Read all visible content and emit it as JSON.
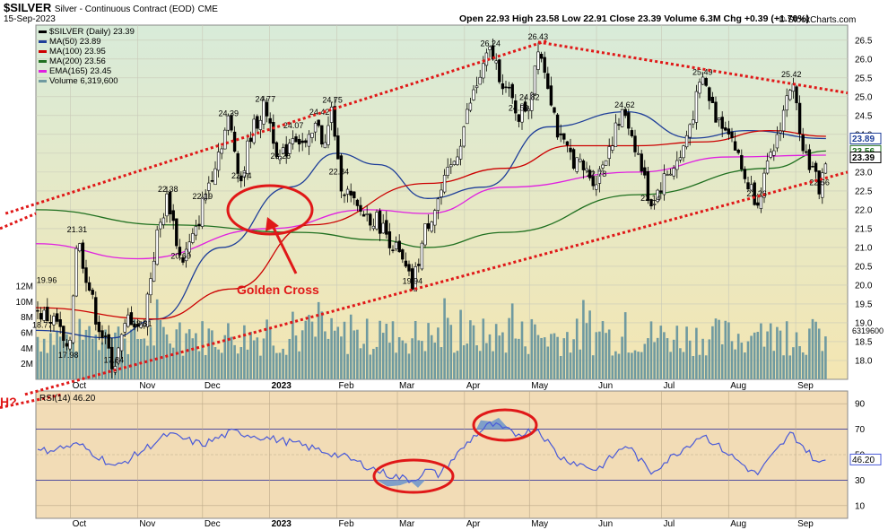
{
  "header": {
    "symbol": "$SILVER",
    "name": "Silver - Continuous Contract (EOD)",
    "exchange": "CME",
    "date": "15-Sep-2023",
    "quote": "Open 22.93  High 23.58  Low 22.91  Close 23.39  Volume 6.3M  Chg +0.39 (+1.70%)",
    "watermark": "© StockCharts.com"
  },
  "legend": [
    {
      "label": "$SILVER (Daily) 23.39",
      "color": "#000000",
      "icon": "candle-icon"
    },
    {
      "label": "MA(50) 23.89",
      "color": "#1f3f99",
      "icon": "line-icon"
    },
    {
      "label": "MA(100) 23.95",
      "color": "#cc0000",
      "icon": "line-icon"
    },
    {
      "label": "MA(200) 23.56",
      "color": "#207020",
      "icon": "line-icon"
    },
    {
      "label": "EMA(165) 23.45",
      "color": "#e020e0",
      "icon": "line-icon"
    },
    {
      "label": "Volume 6,319,600",
      "color": "#6f9aa0",
      "icon": "bars-icon"
    }
  ],
  "rsi_label": "RSI(14) 46.20",
  "annotations": {
    "golden_cross": "Golden Cross",
    "question": "H?"
  },
  "colors": {
    "price_bg_top": "#d8ebd9",
    "price_bg_bottom": "#f4e6b2",
    "rsi_bg": "#f2dcb6",
    "annotation": "#e01818",
    "volume": "#6f9aa0",
    "rsi_line": "#4a5ad8",
    "rsi_fill": "#7f9fc8"
  },
  "chart_data": {
    "type": "candlestick",
    "months": [
      "Oct",
      "Nov",
      "Dec",
      "2023",
      "Feb",
      "Mar",
      "Apr",
      "May",
      "Jun",
      "Jul",
      "Aug",
      "Sep"
    ],
    "price_axis": {
      "ticks": [
        "18.0",
        "18.5",
        "19.0",
        "19.5",
        "20.0",
        "20.5",
        "21.0",
        "21.5",
        "22.0",
        "22.5",
        "23.0",
        "23.5",
        "24.0",
        "24.5",
        "25.0",
        "25.5",
        "26.0",
        "26.5"
      ],
      "min": 17.5,
      "max": 26.9
    },
    "volume_axis": {
      "ticks": [
        "2M",
        "4M",
        "6M",
        "8M",
        "10M",
        "12M"
      ],
      "max": 15
    },
    "rsi_axis": {
      "ticks": [
        "10",
        "30",
        "50",
        "70",
        "90"
      ],
      "min": 0,
      "max": 100
    },
    "close_path": [
      {
        "date": "2022-09-15",
        "close": 19.3
      },
      {
        "date": "2022-09-25",
        "close": 19.0
      },
      {
        "date": "2022-09-30",
        "close": 17.98
      },
      {
        "date": "2022-10-04",
        "close": 21.31
      },
      {
        "date": "2022-10-13",
        "close": 19.1
      },
      {
        "date": "2022-10-21",
        "close": 17.84
      },
      {
        "date": "2022-10-28",
        "close": 19.2
      },
      {
        "date": "2022-11-03",
        "close": 18.81
      },
      {
        "date": "2022-11-10",
        "close": 21.3
      },
      {
        "date": "2022-11-15",
        "close": 22.38
      },
      {
        "date": "2022-11-21",
        "close": 20.6
      },
      {
        "date": "2022-11-28",
        "close": 21.4
      },
      {
        "date": "2022-12-01",
        "close": 22.19
      },
      {
        "date": "2022-12-07",
        "close": 23.3
      },
      {
        "date": "2022-12-13",
        "close": 24.39
      },
      {
        "date": "2022-12-19",
        "close": 22.74
      },
      {
        "date": "2022-12-23",
        "close": 24.0
      },
      {
        "date": "2022-12-30",
        "close": 24.77
      },
      {
        "date": "2023-01-06",
        "close": 23.26
      },
      {
        "date": "2023-01-12",
        "close": 24.07
      },
      {
        "date": "2023-01-18",
        "close": 23.6
      },
      {
        "date": "2023-01-24",
        "close": 24.42
      },
      {
        "date": "2023-01-26",
        "close": 23.5
      },
      {
        "date": "2023-01-30",
        "close": 24.75
      },
      {
        "date": "2023-02-02",
        "close": 22.84
      },
      {
        "date": "2023-02-10",
        "close": 22.0
      },
      {
        "date": "2023-02-20",
        "close": 21.7
      },
      {
        "date": "2023-02-28",
        "close": 21.0
      },
      {
        "date": "2023-03-08",
        "close": 19.94
      },
      {
        "date": "2023-03-14",
        "close": 21.5
      },
      {
        "date": "2023-03-20",
        "close": 22.3
      },
      {
        "date": "2023-03-28",
        "close": 23.4
      },
      {
        "date": "2023-04-04",
        "close": 24.9
      },
      {
        "date": "2023-04-13",
        "close": 26.24
      },
      {
        "date": "2023-04-20",
        "close": 25.2
      },
      {
        "date": "2023-04-26",
        "close": 24.53
      },
      {
        "date": "2023-05-01",
        "close": 24.82
      },
      {
        "date": "2023-05-05",
        "close": 26.43
      },
      {
        "date": "2023-05-10",
        "close": 25.3
      },
      {
        "date": "2023-05-15",
        "close": 23.8
      },
      {
        "date": "2023-05-25",
        "close": 23.1
      },
      {
        "date": "2023-06-01",
        "close": 22.78
      },
      {
        "date": "2023-06-06",
        "close": 23.6
      },
      {
        "date": "2023-06-14",
        "close": 24.62
      },
      {
        "date": "2023-06-20",
        "close": 23.5
      },
      {
        "date": "2023-06-26",
        "close": 22.14
      },
      {
        "date": "2023-07-03",
        "close": 22.9
      },
      {
        "date": "2023-07-10",
        "close": 23.4
      },
      {
        "date": "2023-07-20",
        "close": 25.49
      },
      {
        "date": "2023-07-26",
        "close": 24.5
      },
      {
        "date": "2023-08-01",
        "close": 24.2
      },
      {
        "date": "2023-08-08",
        "close": 22.9
      },
      {
        "date": "2023-08-14",
        "close": 22.26
      },
      {
        "date": "2023-08-21",
        "close": 23.4
      },
      {
        "date": "2023-08-30",
        "close": 25.42
      },
      {
        "date": "2023-09-05",
        "close": 23.6
      },
      {
        "date": "2023-09-12",
        "close": 22.56
      },
      {
        "date": "2023-09-15",
        "close": 23.39
      }
    ],
    "peak_labels": [
      {
        "text": "19.96",
        "date": "2022-09-20",
        "price": 19.96
      },
      {
        "text": "18.77",
        "date": "2022-09-18",
        "price": 18.77
      },
      {
        "text": "17.98",
        "date": "2022-09-30",
        "price": 17.98
      },
      {
        "text": "21.31",
        "date": "2022-10-04",
        "price": 21.31
      },
      {
        "text": "17.84",
        "date": "2022-10-21",
        "price": 17.84
      },
      {
        "text": "18.81",
        "date": "2022-11-03",
        "price": 18.81
      },
      {
        "text": "22.38",
        "date": "2022-11-15",
        "price": 22.38
      },
      {
        "text": "20.60",
        "date": "2022-11-21",
        "price": 20.6
      },
      {
        "text": "22.19",
        "date": "2022-12-01",
        "price": 22.19
      },
      {
        "text": "24.39",
        "date": "2022-12-13",
        "price": 24.39
      },
      {
        "text": "22.74",
        "date": "2022-12-19",
        "price": 22.74
      },
      {
        "text": "24.77",
        "date": "2022-12-30",
        "price": 24.77
      },
      {
        "text": "23.26",
        "date": "2023-01-06",
        "price": 23.26
      },
      {
        "text": "24.07",
        "date": "2023-01-12",
        "price": 24.07
      },
      {
        "text": "24.42",
        "date": "2023-01-24",
        "price": 24.42
      },
      {
        "text": "24.75",
        "date": "2023-01-30",
        "price": 24.75
      },
      {
        "text": "22.84",
        "date": "2023-02-02",
        "price": 22.84
      },
      {
        "text": "19.94",
        "date": "2023-03-08",
        "price": 19.94
      },
      {
        "text": "26.24",
        "date": "2023-04-13",
        "price": 26.24
      },
      {
        "text": "24.53",
        "date": "2023-04-26",
        "price": 24.53
      },
      {
        "text": "24.82",
        "date": "2023-05-01",
        "price": 24.82
      },
      {
        "text": "26.43",
        "date": "2023-05-05",
        "price": 26.43
      },
      {
        "text": "22.78",
        "date": "2023-06-01",
        "price": 22.78
      },
      {
        "text": "24.62",
        "date": "2023-06-14",
        "price": 24.62
      },
      {
        "text": "22.14",
        "date": "2023-06-26",
        "price": 22.14
      },
      {
        "text": "25.49",
        "date": "2023-07-20",
        "price": 25.49
      },
      {
        "text": "22.26",
        "date": "2023-08-14",
        "price": 22.26
      },
      {
        "text": "25.42",
        "date": "2023-08-30",
        "price": 25.42
      },
      {
        "text": "22.56",
        "date": "2023-09-12",
        "price": 22.56
      }
    ],
    "last_value_tags": [
      {
        "text": "23.89",
        "price": 23.89,
        "color": "#1f3f99"
      },
      {
        "text": "23.56",
        "price": 23.56,
        "color": "#207020"
      },
      {
        "text": "23.39",
        "price": 23.39,
        "color": "#000000"
      }
    ],
    "volume_last_tag": "6319600",
    "rsi_last_tag": "46.20",
    "moving_averages": [
      {
        "name": "MA(50)",
        "color": "#1f3f99",
        "points": [
          {
            "date": "2022-09-15",
            "value": 18.8
          },
          {
            "date": "2022-10-20",
            "value": 18.6
          },
          {
            "date": "2022-11-10",
            "value": 19.1
          },
          {
            "date": "2022-12-10",
            "value": 21.0
          },
          {
            "date": "2023-01-10",
            "value": 22.6
          },
          {
            "date": "2023-02-01",
            "value": 23.5
          },
          {
            "date": "2023-02-20",
            "value": 23.2
          },
          {
            "date": "2023-03-15",
            "value": 22.3
          },
          {
            "date": "2023-04-10",
            "value": 22.6
          },
          {
            "date": "2023-05-10",
            "value": 24.2
          },
          {
            "date": "2023-06-15",
            "value": 24.6
          },
          {
            "date": "2023-07-15",
            "value": 23.9
          },
          {
            "date": "2023-08-10",
            "value": 24.1
          },
          {
            "date": "2023-09-15",
            "value": 23.89
          }
        ]
      },
      {
        "name": "MA(100)",
        "color": "#cc0000",
        "points": [
          {
            "date": "2022-09-15",
            "value": 19.4
          },
          {
            "date": "2022-11-10",
            "value": 19.1
          },
          {
            "date": "2022-12-15",
            "value": 19.9
          },
          {
            "date": "2023-01-20",
            "value": 21.6
          },
          {
            "date": "2023-03-15",
            "value": 22.7
          },
          {
            "date": "2023-04-20",
            "value": 23.1
          },
          {
            "date": "2023-05-20",
            "value": 23.7
          },
          {
            "date": "2023-06-20",
            "value": 23.7
          },
          {
            "date": "2023-07-20",
            "value": 23.8
          },
          {
            "date": "2023-08-20",
            "value": 24.1
          },
          {
            "date": "2023-09-15",
            "value": 23.95
          }
        ]
      },
      {
        "name": "MA(200)",
        "color": "#207020",
        "points": [
          {
            "date": "2022-09-15",
            "value": 22.0
          },
          {
            "date": "2022-11-15",
            "value": 21.6
          },
          {
            "date": "2023-01-15",
            "value": 21.4
          },
          {
            "date": "2023-02-20",
            "value": 21.2
          },
          {
            "date": "2023-03-15",
            "value": 21.0
          },
          {
            "date": "2023-04-20",
            "value": 21.4
          },
          {
            "date": "2023-06-20",
            "value": 22.4
          },
          {
            "date": "2023-08-20",
            "value": 23.1
          },
          {
            "date": "2023-09-15",
            "value": 23.56
          }
        ]
      },
      {
        "name": "EMA(165)",
        "color": "#e020e0",
        "points": [
          {
            "date": "2022-09-15",
            "value": 21.1
          },
          {
            "date": "2022-11-01",
            "value": 20.7
          },
          {
            "date": "2023-01-01",
            "value": 21.5
          },
          {
            "date": "2023-02-15",
            "value": 22.0
          },
          {
            "date": "2023-03-15",
            "value": 21.9
          },
          {
            "date": "2023-04-20",
            "value": 22.6
          },
          {
            "date": "2023-06-20",
            "value": 23.0
          },
          {
            "date": "2023-08-01",
            "value": 23.4
          },
          {
            "date": "2023-09-15",
            "value": 23.45
          }
        ]
      }
    ],
    "trendlines": [
      {
        "name": "upper-channel",
        "from": {
          "date": "2022-09-01",
          "price": 21.9
        },
        "to": {
          "date": "2023-05-10",
          "price": 26.5
        }
      },
      {
        "name": "lower-channel",
        "from": {
          "date": "2022-09-10",
          "price": 17.1
        },
        "to": {
          "date": "2023-09-25",
          "price": 23.0
        }
      },
      {
        "name": "resistance",
        "from": {
          "date": "2023-05-05",
          "price": 26.45
        },
        "to": {
          "date": "2023-09-25",
          "price": 25.1
        }
      }
    ],
    "rsi_path": [
      {
        "date": "2022-09-15",
        "value": 52
      },
      {
        "date": "2022-10-05",
        "value": 58
      },
      {
        "date": "2022-10-22",
        "value": 40
      },
      {
        "date": "2022-11-15",
        "value": 66
      },
      {
        "date": "2022-12-01",
        "value": 58
      },
      {
        "date": "2022-12-15",
        "value": 68
      },
      {
        "date": "2023-01-10",
        "value": 60
      },
      {
        "date": "2023-02-05",
        "value": 48
      },
      {
        "date": "2023-02-25",
        "value": 34
      },
      {
        "date": "2023-03-08",
        "value": 30
      },
      {
        "date": "2023-03-15",
        "value": 38
      },
      {
        "date": "2023-03-20",
        "value": 34
      },
      {
        "date": "2023-04-05",
        "value": 64
      },
      {
        "date": "2023-04-13",
        "value": 74
      },
      {
        "date": "2023-04-25",
        "value": 66
      },
      {
        "date": "2023-05-05",
        "value": 70
      },
      {
        "date": "2023-05-15",
        "value": 48
      },
      {
        "date": "2023-06-01",
        "value": 38
      },
      {
        "date": "2023-06-15",
        "value": 58
      },
      {
        "date": "2023-06-26",
        "value": 36
      },
      {
        "date": "2023-07-20",
        "value": 66
      },
      {
        "date": "2023-08-14",
        "value": 34
      },
      {
        "date": "2023-08-30",
        "value": 67
      },
      {
        "date": "2023-09-12",
        "value": 42
      },
      {
        "date": "2023-09-15",
        "value": 46.2
      }
    ]
  }
}
